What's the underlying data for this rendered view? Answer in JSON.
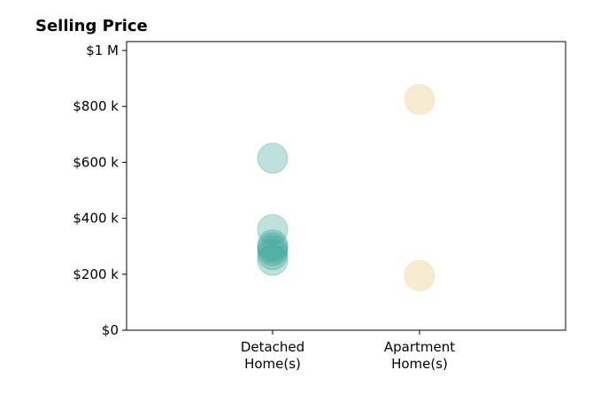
{
  "chart_data": {
    "type": "scatter",
    "title": "Selling Price",
    "xlabel": "",
    "ylabel": "",
    "categories": [
      "Detached\nHome(s)",
      "Apartment\nHome(s)"
    ],
    "ylim": [
      0,
      1000000
    ],
    "yticks": [
      {
        "value": 0,
        "label": "$0"
      },
      {
        "value": 200000,
        "label": "$200 k"
      },
      {
        "value": 400000,
        "label": "$400 k"
      },
      {
        "value": 600000,
        "label": "$600 k"
      },
      {
        "value": 800000,
        "label": "$800 k"
      },
      {
        "value": 1000000,
        "label": "$1 M"
      }
    ],
    "grid": false,
    "series": [
      {
        "category_index": 0,
        "color": "#3aa597",
        "opacity": 0.33,
        "values": [
          615000,
          360000,
          305000,
          295000,
          285000,
          270000,
          250000
        ]
      },
      {
        "category_index": 1,
        "color": "#f0d9a5",
        "opacity": 0.5,
        "values": [
          825000,
          195000
        ]
      }
    ]
  }
}
